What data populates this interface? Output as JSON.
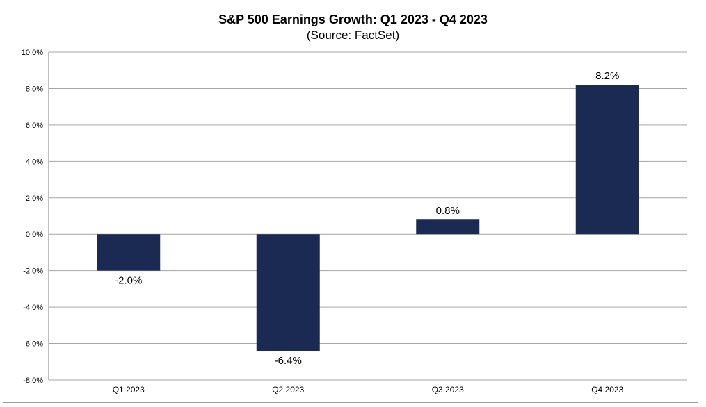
{
  "chart_data": {
    "type": "bar",
    "title": "S&P 500 Earnings Growth: Q1 2023 - Q4 2023",
    "subtitle": "(Source: FactSet)",
    "categories": [
      "Q1 2023",
      "Q2 2023",
      "Q3 2023",
      "Q4 2023"
    ],
    "values": [
      -2.0,
      -6.4,
      0.8,
      8.2
    ],
    "data_labels": [
      "-2.0%",
      "-6.4%",
      "0.8%",
      "8.2%"
    ],
    "xlabel": "",
    "ylabel": "",
    "ylim": [
      -8,
      10
    ],
    "yticks": [
      10,
      8,
      6,
      4,
      2,
      0,
      -2,
      -4,
      -6,
      -8
    ],
    "ytick_labels": [
      "10.0%",
      "8.0%",
      "6.0%",
      "4.0%",
      "2.0%",
      "0.0%",
      "-2.0%",
      "-4.0%",
      "-6.0%",
      "-8.0%"
    ],
    "grid": true,
    "bar_color": "#1b2a52",
    "grid_color": "#a6a6a6"
  }
}
